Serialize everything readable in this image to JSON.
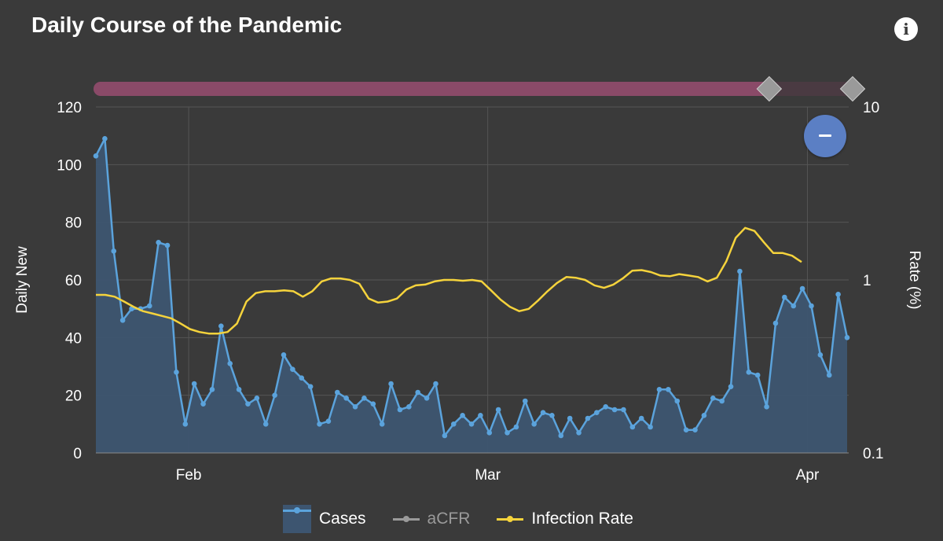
{
  "header": {
    "title": "Daily Course of the Pandemic",
    "info_icon": "info-icon"
  },
  "zoom": {
    "icon": "zoom-out-icon"
  },
  "legend": {
    "items": [
      {
        "label": "Cases",
        "color": "#5ba3dc",
        "style": "area",
        "muted": false
      },
      {
        "label": "aCFR",
        "color": "#9a9a9a",
        "style": "line",
        "muted": true
      },
      {
        "label": "Infection Rate",
        "color": "#f5d33c",
        "style": "line",
        "muted": false
      }
    ]
  },
  "colors": {
    "background": "#3a3a3a",
    "grid": "#555555",
    "cases_line": "#5ba3dc",
    "cases_fill": "#3d5570",
    "infection_rate": "#f5d33c",
    "range_slider": "#8a4a68"
  },
  "chart_data": {
    "type": "area",
    "xlabel": "",
    "ylabel": "Daily New",
    "ylabel_right": "Rate (%)",
    "x_ticks": [
      "Feb",
      "Mar",
      "Apr"
    ],
    "y_left_ticks": [
      "0",
      "20",
      "40",
      "60",
      "80",
      "100",
      "120"
    ],
    "y_right_ticks": [
      "0.1",
      "1",
      "10"
    ],
    "ylim_left": [
      0,
      120
    ],
    "ylim_right": [
      0.1,
      10
    ],
    "y_right_scale": "log",
    "x_range_dates": [
      "2020-01-23",
      "2020-04-05"
    ],
    "grid": true,
    "legend_position": "bottom",
    "range_selector": {
      "start_fraction": 0.89,
      "end_fraction": 1.0
    },
    "series": [
      {
        "name": "Cases",
        "axis": "left",
        "values": [
          103,
          109,
          70,
          46,
          50,
          50,
          51,
          73,
          72,
          28,
          10,
          24,
          17,
          22,
          44,
          31,
          22,
          17,
          19,
          10,
          20,
          34,
          29,
          26,
          23,
          10,
          11,
          21,
          19,
          16,
          19,
          17,
          10,
          24,
          15,
          16,
          21,
          19,
          24,
          6,
          10,
          13,
          10,
          13,
          7,
          15,
          7,
          9,
          18,
          10,
          14,
          13,
          6,
          12,
          7,
          12,
          14,
          16,
          15,
          15,
          9,
          12,
          9,
          22,
          22,
          18,
          8,
          8,
          13,
          19,
          18,
          23,
          63,
          28,
          27,
          16,
          45,
          54,
          51,
          57,
          51,
          34,
          27,
          55,
          40
        ]
      },
      {
        "name": "Infection Rate",
        "axis": "right",
        "values": [
          0.82,
          0.82,
          0.8,
          0.75,
          0.7,
          0.66,
          0.64,
          0.62,
          0.6,
          0.56,
          0.52,
          0.5,
          0.49,
          0.49,
          0.5,
          0.56,
          0.75,
          0.84,
          0.86,
          0.86,
          0.87,
          0.86,
          0.8,
          0.86,
          0.98,
          1.02,
          1.02,
          1.0,
          0.95,
          0.78,
          0.74,
          0.75,
          0.78,
          0.88,
          0.93,
          0.94,
          0.98,
          1.0,
          1.0,
          0.99,
          1.0,
          0.98,
          0.87,
          0.77,
          0.7,
          0.66,
          0.68,
          0.76,
          0.86,
          0.96,
          1.04,
          1.03,
          1.0,
          0.93,
          0.9,
          0.94,
          1.02,
          1.13,
          1.14,
          1.11,
          1.06,
          1.05,
          1.08,
          1.06,
          1.04,
          0.98,
          1.03,
          1.28,
          1.75,
          2.0,
          1.92,
          1.65,
          1.43,
          1.43,
          1.38,
          1.27
        ]
      }
    ]
  }
}
